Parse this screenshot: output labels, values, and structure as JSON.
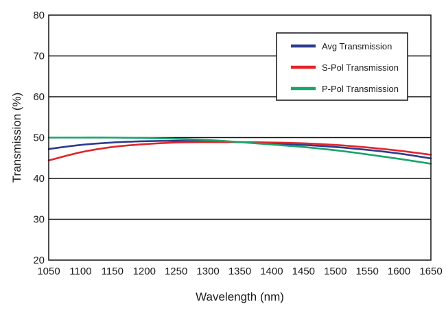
{
  "chart_data": {
    "type": "line",
    "title": "",
    "xlabel": "Wavelength (nm)",
    "ylabel": "Transmission (%)",
    "xlim": [
      1050,
      1650
    ],
    "ylim": [
      20,
      80
    ],
    "x_ticks": [
      1050,
      1100,
      1150,
      1200,
      1250,
      1300,
      1350,
      1400,
      1450,
      1500,
      1550,
      1600,
      1650
    ],
    "y_ticks": [
      20,
      30,
      40,
      50,
      60,
      70,
      80
    ],
    "grid": "horizontal",
    "legend_position": "top-right",
    "x": [
      1050,
      1100,
      1150,
      1200,
      1250,
      1300,
      1350,
      1400,
      1450,
      1500,
      1550,
      1600,
      1650
    ],
    "series": [
      {
        "name": "Avg Transmission",
        "color": "#2e3a8f",
        "values": [
          47.2,
          48.2,
          48.8,
          49.1,
          49.2,
          49.1,
          48.9,
          48.6,
          48.2,
          47.7,
          47.0,
          46.1,
          44.9
        ]
      },
      {
        "name": "S-Pol Transmission",
        "color": "#e0262b",
        "values": [
          44.4,
          46.4,
          47.7,
          48.4,
          48.8,
          48.9,
          48.9,
          48.8,
          48.6,
          48.2,
          47.6,
          46.8,
          45.8
        ]
      },
      {
        "name": "P-Pol Transmission",
        "color": "#1aa36a",
        "values": [
          50.0,
          50.0,
          50.0,
          49.9,
          49.7,
          49.4,
          48.9,
          48.3,
          47.7,
          46.9,
          45.9,
          44.8,
          43.6
        ]
      }
    ]
  }
}
